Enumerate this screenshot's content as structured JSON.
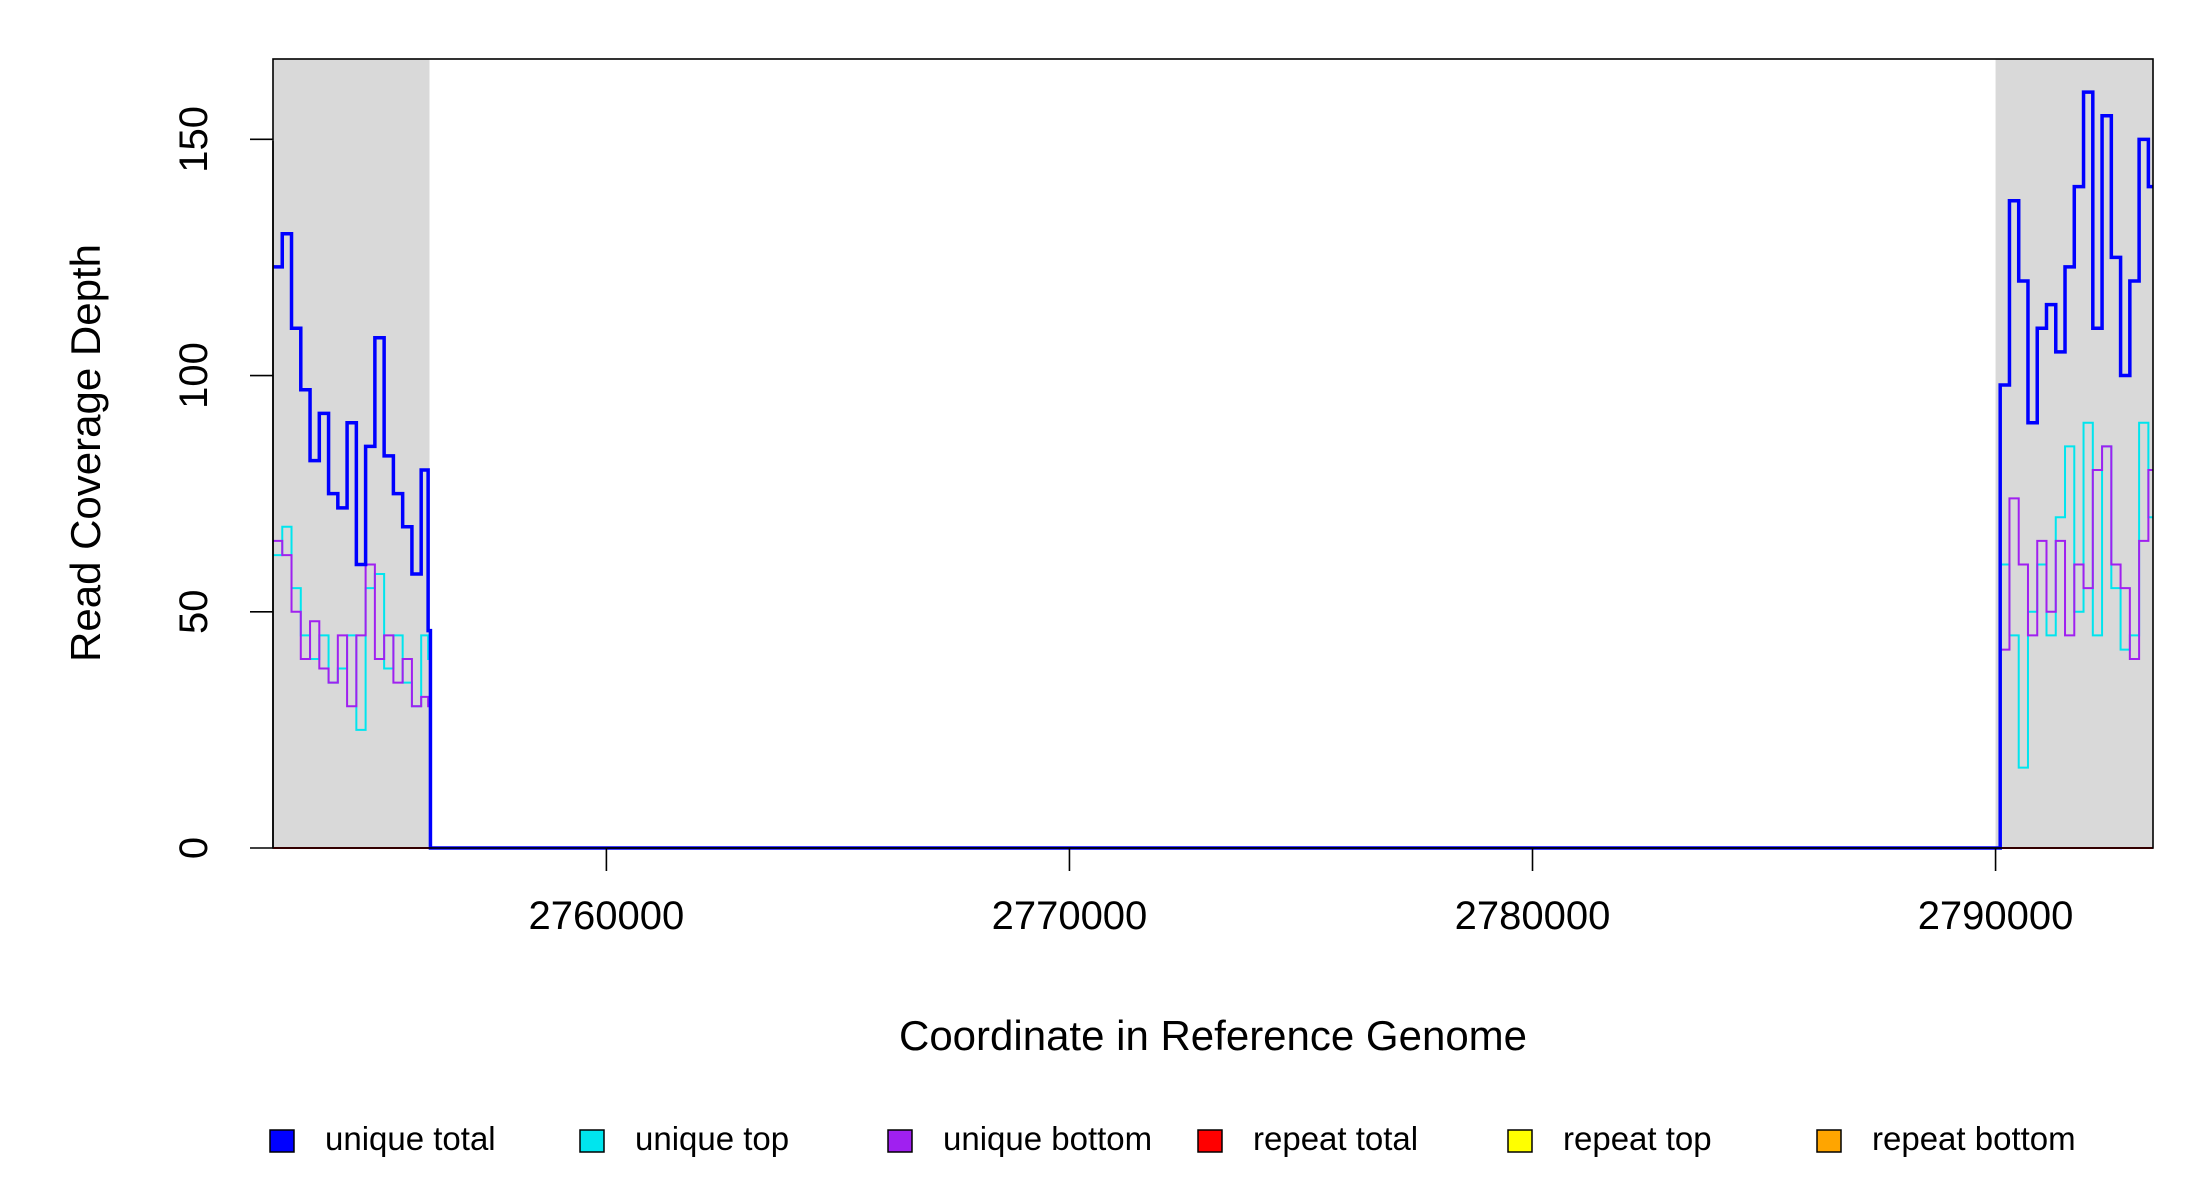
{
  "chart_data": {
    "type": "line",
    "title": "",
    "xlabel": "Coordinate in Reference Genome",
    "ylabel": "Read Coverage Depth",
    "xlim": [
      2752800,
      2793400
    ],
    "ylim": [
      0,
      167
    ],
    "grid": false,
    "legend_position": "bottom",
    "x_ticks": [
      {
        "value": 2760000,
        "label": "2760000"
      },
      {
        "value": 2770000,
        "label": "2770000"
      },
      {
        "value": 2780000,
        "label": "2780000"
      },
      {
        "value": 2790000,
        "label": "2790000"
      }
    ],
    "y_ticks": [
      {
        "value": 0,
        "label": "0"
      },
      {
        "value": 50,
        "label": "50"
      },
      {
        "value": 100,
        "label": "100"
      },
      {
        "value": 150,
        "label": "150"
      }
    ],
    "shaded_regions": [
      {
        "x0": 2752800,
        "x1": 2756180,
        "color": "#d9d9d9"
      },
      {
        "x0": 2790000,
        "x1": 2793400,
        "color": "#d9d9d9"
      }
    ],
    "series": [
      {
        "name": "unique total",
        "color": "#0000ff",
        "x": [
          2752800,
          2753000,
          2753200,
          2753400,
          2753600,
          2753800,
          2754000,
          2754200,
          2754400,
          2754600,
          2754800,
          2755000,
          2755200,
          2755400,
          2755600,
          2755800,
          2756000,
          2756150,
          2756200,
          2790000,
          2790100,
          2790300,
          2790500,
          2790700,
          2790900,
          2791100,
          2791300,
          2791500,
          2791700,
          2791900,
          2792100,
          2792300,
          2792500,
          2792700,
          2792900,
          2793100,
          2793300,
          2793400
        ],
        "y": [
          123,
          130,
          110,
          97,
          82,
          92,
          75,
          72,
          90,
          60,
          85,
          108,
          83,
          75,
          68,
          58,
          80,
          46,
          0,
          0,
          98,
          137,
          120,
          90,
          110,
          115,
          105,
          123,
          140,
          160,
          110,
          155,
          125,
          100,
          120,
          150,
          140,
          140
        ]
      },
      {
        "name": "unique top",
        "color": "#00e5ee",
        "x": [
          2752800,
          2753000,
          2753200,
          2753400,
          2753600,
          2753800,
          2754000,
          2754200,
          2754400,
          2754600,
          2754800,
          2755000,
          2755200,
          2755400,
          2755600,
          2755800,
          2756000,
          2756150,
          2756200,
          2790000,
          2790100,
          2790300,
          2790500,
          2790700,
          2790900,
          2791100,
          2791300,
          2791500,
          2791700,
          2791900,
          2792100,
          2792300,
          2792500,
          2792700,
          2792900,
          2793100,
          2793300,
          2793400
        ],
        "y": [
          62,
          68,
          55,
          45,
          40,
          45,
          35,
          38,
          45,
          25,
          55,
          58,
          38,
          45,
          35,
          30,
          45,
          40,
          0,
          0,
          60,
          45,
          17,
          50,
          60,
          45,
          70,
          85,
          50,
          90,
          45,
          85,
          55,
          42,
          45,
          90,
          70,
          70
        ]
      },
      {
        "name": "unique bottom",
        "color": "#a020f0",
        "x": [
          2752800,
          2753000,
          2753200,
          2753400,
          2753600,
          2753800,
          2754000,
          2754200,
          2754400,
          2754600,
          2754800,
          2755000,
          2755200,
          2755400,
          2755600,
          2755800,
          2756000,
          2756150,
          2756200,
          2790000,
          2790100,
          2790300,
          2790500,
          2790700,
          2790900,
          2791100,
          2791300,
          2791500,
          2791700,
          2791900,
          2792100,
          2792300,
          2792500,
          2792700,
          2792900,
          2793100,
          2793300,
          2793400
        ],
        "y": [
          65,
          62,
          50,
          40,
          48,
          38,
          35,
          45,
          30,
          45,
          60,
          40,
          45,
          35,
          40,
          30,
          32,
          30,
          0,
          0,
          42,
          74,
          60,
          45,
          65,
          50,
          65,
          45,
          60,
          55,
          80,
          85,
          60,
          55,
          40,
          65,
          80,
          80
        ]
      },
      {
        "name": "repeat total",
        "color": "#ff0000",
        "x": [
          2752800,
          2793400
        ],
        "y": [
          0,
          0
        ]
      },
      {
        "name": "repeat top",
        "color": "#ffff00",
        "x": [
          2752800,
          2793400
        ],
        "y": [
          0,
          0
        ]
      },
      {
        "name": "repeat bottom",
        "color": "#ffa500",
        "x": [
          2752800,
          2793400
        ],
        "y": [
          0,
          0
        ]
      }
    ]
  }
}
